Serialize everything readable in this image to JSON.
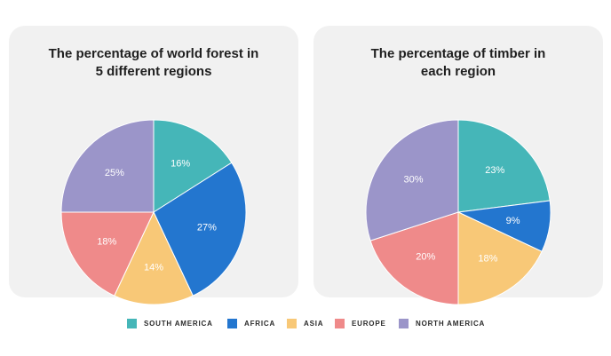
{
  "chart_data": [
    {
      "type": "pie",
      "title_lines": [
        "The percentage of world forest in",
        "5 different regions"
      ],
      "categories": [
        "SOUTH AMERICA",
        "AFRICA",
        "ASIA",
        "EUROPE",
        "NORTH AMERICA"
      ],
      "values": [
        16,
        27,
        14,
        18,
        25
      ],
      "labels": [
        "16%",
        "27%",
        "14%",
        "18%",
        "25%"
      ],
      "colors": [
        "#45b6b8",
        "#2376cf",
        "#f8c877",
        "#ef8a8a",
        "#9b95c9"
      ]
    },
    {
      "type": "pie",
      "title_lines": [
        "The percentage of timber in",
        "each region"
      ],
      "categories": [
        "SOUTH AMERICA",
        "AFRICA",
        "ASIA",
        "EUROPE",
        "NORTH AMERICA"
      ],
      "values": [
        23,
        9,
        18,
        20,
        30
      ],
      "labels": [
        "23%",
        "9%",
        "18%",
        "20%",
        "30%"
      ],
      "colors": [
        "#45b6b8",
        "#2376cf",
        "#f8c877",
        "#ef8a8a",
        "#9b95c9"
      ]
    }
  ],
  "legend": {
    "placement": "bottom",
    "items": [
      {
        "label": "SOUTH AMERICA",
        "color": "#45b6b8"
      },
      {
        "label": "AFRICA",
        "color": "#2376cf"
      },
      {
        "label": "ASIA",
        "color": "#f8c877"
      },
      {
        "label": "EUROPE",
        "color": "#ef8a8a"
      },
      {
        "label": "NORTH AMERICA",
        "color": "#9b95c9"
      }
    ]
  }
}
